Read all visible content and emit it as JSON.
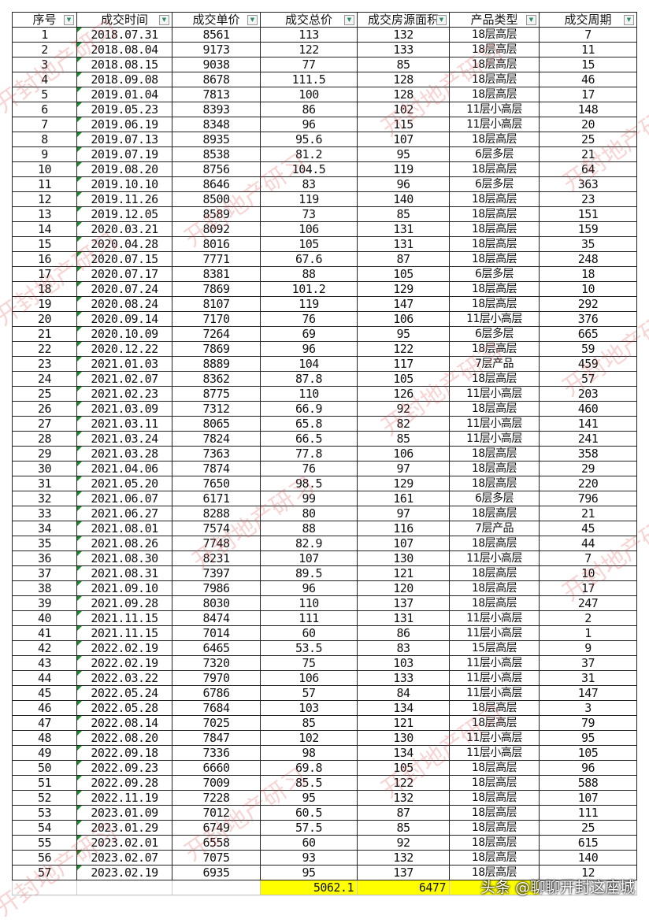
{
  "columns": [
    "序号",
    "成交时间",
    "成交单价",
    "成交总价",
    "成交房源面积",
    "产品类型",
    "成交周期"
  ],
  "rows": [
    [
      "1",
      "2018.07.31",
      "8561",
      "113",
      "132",
      "18层高层",
      "7"
    ],
    [
      "2",
      "2018.08.04",
      "9173",
      "122",
      "133",
      "18层高层",
      "11"
    ],
    [
      "3",
      "2018.08.15",
      "9038",
      "77",
      "85",
      "18层高层",
      "15"
    ],
    [
      "4",
      "2018.09.08",
      "8678",
      "111.5",
      "128",
      "18层高层",
      "46"
    ],
    [
      "5",
      "2019.01.04",
      "7813",
      "100",
      "128",
      "18层高层",
      "17"
    ],
    [
      "6",
      "2019.05.23",
      "8393",
      "86",
      "102",
      "11层小高层",
      "148"
    ],
    [
      "7",
      "2019.06.19",
      "8348",
      "96",
      "115",
      "11层小高层",
      "20"
    ],
    [
      "8",
      "2019.07.13",
      "8935",
      "95.6",
      "107",
      "18层高层",
      "25"
    ],
    [
      "9",
      "2019.07.19",
      "8538",
      "81.2",
      "95",
      "6层多层",
      "21"
    ],
    [
      "10",
      "2019.08.20",
      "8756",
      "104.5",
      "119",
      "18层高层",
      "64"
    ],
    [
      "11",
      "2019.10.10",
      "8646",
      "83",
      "96",
      "6层多层",
      "363"
    ],
    [
      "12",
      "2019.11.26",
      "8500",
      "119",
      "140",
      "18层高层",
      "23"
    ],
    [
      "13",
      "2019.12.05",
      "8589",
      "73",
      "85",
      "18层高层",
      "151"
    ],
    [
      "14",
      "2020.03.21",
      "8092",
      "106",
      "131",
      "18层高层",
      "159"
    ],
    [
      "15",
      "2020.04.28",
      "8016",
      "105",
      "131",
      "18层高层",
      "35"
    ],
    [
      "16",
      "2020.07.15",
      "7771",
      "67.6",
      "87",
      "18层高层",
      "248"
    ],
    [
      "17",
      "2020.07.17",
      "8381",
      "88",
      "105",
      "6层多层",
      "18"
    ],
    [
      "18",
      "2020.07.24",
      "7869",
      "101.2",
      "129",
      "18层高层",
      "10"
    ],
    [
      "19",
      "2020.08.24",
      "8107",
      "119",
      "147",
      "18层高层",
      "292"
    ],
    [
      "20",
      "2020.09.14",
      "7170",
      "76",
      "106",
      "11层小高层",
      "376"
    ],
    [
      "21",
      "2020.10.09",
      "7264",
      "69",
      "95",
      "6层多层",
      "665"
    ],
    [
      "22",
      "2020.12.22",
      "7869",
      "96",
      "122",
      "18层高层",
      "59"
    ],
    [
      "23",
      "2021.01.03",
      "8889",
      "104",
      "117",
      "7层产品",
      "459"
    ],
    [
      "24",
      "2021.02.07",
      "8362",
      "87.8",
      "105",
      "18层高层",
      "57"
    ],
    [
      "25",
      "2021.02.23",
      "8775",
      "110",
      "126",
      "11层小高层",
      "203"
    ],
    [
      "26",
      "2021.03.09",
      "7312",
      "66.9",
      "92",
      "18层高层",
      "460"
    ],
    [
      "27",
      "2021.03.11",
      "8065",
      "65.8",
      "82",
      "11层小高层",
      "141"
    ],
    [
      "28",
      "2021.03.24",
      "7824",
      "66.5",
      "85",
      "11层小高层",
      "241"
    ],
    [
      "29",
      "2021.03.28",
      "7363",
      "77.8",
      "106",
      "18层高层",
      "358"
    ],
    [
      "30",
      "2021.04.06",
      "7874",
      "76",
      "97",
      "18层高层",
      "29"
    ],
    [
      "31",
      "2021.05.20",
      "7650",
      "98.5",
      "129",
      "18层高层",
      "220"
    ],
    [
      "32",
      "2021.06.07",
      "6171",
      "99",
      "161",
      "6层多层",
      "796"
    ],
    [
      "33",
      "2021.06.27",
      "8288",
      "80",
      "97",
      "18层高层",
      "21"
    ],
    [
      "34",
      "2021.08.01",
      "7574",
      "88",
      "116",
      "7层产品",
      "45"
    ],
    [
      "35",
      "2021.08.26",
      "7748",
      "82.9",
      "107",
      "18层高层",
      "44"
    ],
    [
      "36",
      "2021.08.30",
      "8231",
      "107",
      "130",
      "11层小高层",
      "7"
    ],
    [
      "37",
      "2021.08.31",
      "7397",
      "89.5",
      "121",
      "18层高层",
      "10"
    ],
    [
      "38",
      "2021.09.10",
      "7986",
      "96",
      "120",
      "18层高层",
      "17"
    ],
    [
      "39",
      "2021.09.28",
      "8030",
      "110",
      "137",
      "18层高层",
      "247"
    ],
    [
      "40",
      "2021.11.15",
      "8474",
      "111",
      "131",
      "11层小高层",
      "2"
    ],
    [
      "41",
      "2021.11.15",
      "7014",
      "60",
      "86",
      "11层小高层",
      "1"
    ],
    [
      "42",
      "2022.02.19",
      "6465",
      "53.5",
      "83",
      "15层高层",
      "9"
    ],
    [
      "43",
      "2022.02.19",
      "7320",
      "75",
      "103",
      "11层小高层",
      "37"
    ],
    [
      "44",
      "2022.03.22",
      "7970",
      "106",
      "133",
      "11层小高层",
      "31"
    ],
    [
      "45",
      "2022.05.24",
      "6786",
      "57",
      "84",
      "11层小高层",
      "147"
    ],
    [
      "46",
      "2022.05.28",
      "7684",
      "103",
      "134",
      "18层高层",
      "3"
    ],
    [
      "47",
      "2022.08.14",
      "7025",
      "85",
      "121",
      "18层高层",
      "79"
    ],
    [
      "48",
      "2022.08.20",
      "7847",
      "102",
      "130",
      "11层小高层",
      "95"
    ],
    [
      "49",
      "2022.09.18",
      "7336",
      "98",
      "134",
      "11层小高层",
      "105"
    ],
    [
      "50",
      "2022.09.23",
      "6660",
      "69.8",
      "105",
      "18层高层",
      "96"
    ],
    [
      "51",
      "2022.09.28",
      "7009",
      "85.5",
      "122",
      "18层高层",
      "588"
    ],
    [
      "52",
      "2022.11.19",
      "7228",
      "95",
      "132",
      "18层高层",
      "107"
    ],
    [
      "53",
      "2023.01.09",
      "7012",
      "60.5",
      "87",
      "18层高层",
      "111"
    ],
    [
      "54",
      "2023.01.29",
      "6749",
      "57.5",
      "85",
      "18层高层",
      "25"
    ],
    [
      "55",
      "2023.02.01",
      "6558",
      "60",
      "92",
      "18层高层",
      "615"
    ],
    [
      "56",
      "2023.02.07",
      "7075",
      "93",
      "132",
      "18层高层",
      "140"
    ],
    [
      "57",
      "2023.02.19",
      "6935",
      "95",
      "137",
      "18层高层",
      "12"
    ]
  ],
  "totals": {
    "total_price": "5062.1",
    "total_area": "6477"
  },
  "highlight_color": "#ffff00",
  "filter_icon": "dropdown-filter-icon",
  "watermark": "开封地产研习",
  "brand_overlay": "头条 @聊聊开封这座城"
}
